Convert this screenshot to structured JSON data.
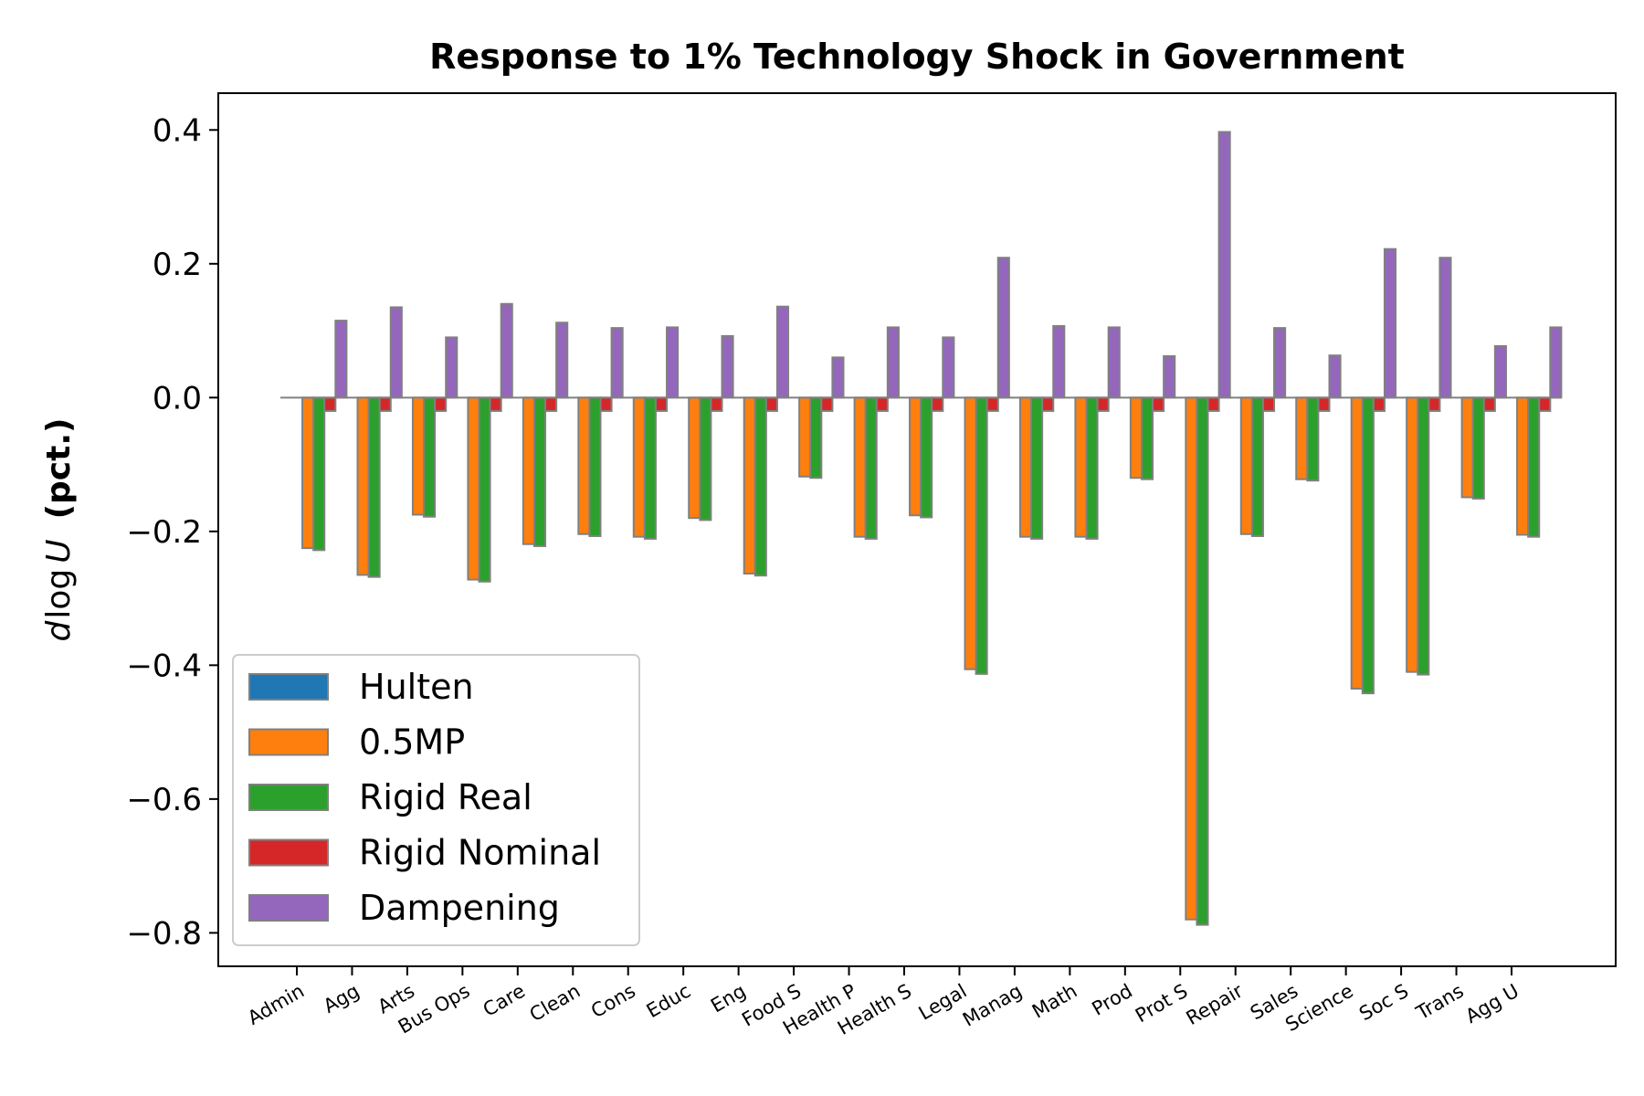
{
  "chart_data": {
    "type": "bar",
    "title": "Response to 1% Technology Shock in Government",
    "ylabel_math": "d log U",
    "ylabel_unit": "(pct.)",
    "ylim": [
      -0.85,
      0.455
    ],
    "yticks": [
      0.4,
      0.2,
      0.0,
      -0.2,
      -0.4,
      -0.6,
      -0.8
    ],
    "ytick_labels": [
      "0.4",
      "0.2",
      "0.0",
      "−0.2",
      "−0.4",
      "−0.6",
      "−0.8"
    ],
    "grid": false,
    "legend_position": "lower-left",
    "bar_edge_color": "#808080",
    "categories": [
      "Admin",
      "Agg",
      "Arts",
      "Bus Ops",
      "Care",
      "Clean",
      "Cons",
      "Educ",
      "Eng",
      "Food S",
      "Health P",
      "Health S",
      "Legal",
      "Manag",
      "Math",
      "Prod",
      "Prot S",
      "Repair",
      "Sales",
      "Science",
      "Soc S",
      "Trans",
      "Agg U"
    ],
    "series": [
      {
        "name": "Hulten",
        "color": "#1f77b4",
        "values": [
          0,
          0,
          0,
          0,
          0,
          0,
          0,
          0,
          0,
          0,
          0,
          0,
          0,
          0,
          0,
          0,
          0,
          0,
          0,
          0,
          0,
          0,
          0
        ]
      },
      {
        "name": "0.5MP",
        "color": "#ff7f0e",
        "values": [
          -0.225,
          -0.265,
          -0.175,
          -0.272,
          -0.219,
          -0.204,
          -0.208,
          -0.18,
          -0.263,
          -0.118,
          -0.208,
          -0.176,
          -0.406,
          -0.208,
          -0.208,
          -0.12,
          -0.78,
          -0.204,
          -0.122,
          -0.435,
          -0.41,
          -0.149,
          -0.205
        ]
      },
      {
        "name": "Rigid Real",
        "color": "#2ca02c",
        "values": [
          -0.228,
          -0.268,
          -0.178,
          -0.275,
          -0.222,
          -0.207,
          -0.211,
          -0.183,
          -0.266,
          -0.12,
          -0.211,
          -0.179,
          -0.413,
          -0.211,
          -0.211,
          -0.122,
          -0.788,
          -0.207,
          -0.124,
          -0.442,
          -0.414,
          -0.151,
          -0.208
        ]
      },
      {
        "name": "Rigid Nominal",
        "color": "#d62728",
        "values": [
          -0.02,
          -0.02,
          -0.02,
          -0.02,
          -0.02,
          -0.02,
          -0.02,
          -0.02,
          -0.02,
          -0.02,
          -0.02,
          -0.02,
          -0.02,
          -0.02,
          -0.02,
          -0.02,
          -0.02,
          -0.02,
          -0.02,
          -0.02,
          -0.02,
          -0.02,
          -0.02
        ]
      },
      {
        "name": "Dampening",
        "color": "#9467bd",
        "values": [
          0.115,
          0.135,
          0.09,
          0.14,
          0.112,
          0.104,
          0.105,
          0.092,
          0.136,
          0.06,
          0.105,
          0.09,
          0.209,
          0.107,
          0.105,
          0.062,
          0.397,
          0.104,
          0.063,
          0.222,
          0.209,
          0.077,
          0.105
        ]
      }
    ]
  }
}
